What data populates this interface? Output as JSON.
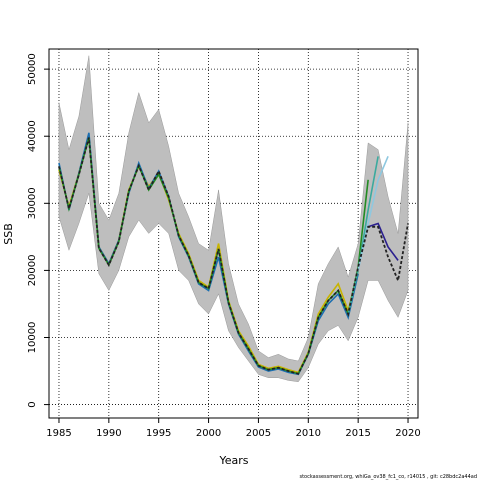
{
  "chart_data": {
    "type": "line",
    "xlabel": "Years",
    "ylabel": "SSB",
    "footer": "stockassessment.org, whiGa_ov38_fc1_co, r14015 , git: c28bdc2a44ad",
    "xlim": [
      1984,
      2021
    ],
    "ylim": [
      -2000,
      53000
    ],
    "xticks": [
      1985,
      1990,
      1995,
      2000,
      2005,
      2010,
      2015,
      2020
    ],
    "yticks": [
      0,
      10000,
      20000,
      30000,
      40000,
      50000
    ],
    "grid": true,
    "grid_style": "dotted",
    "confidence_band": {
      "x": [
        1985,
        1986,
        1987,
        1988,
        1989,
        1990,
        1991,
        1992,
        1993,
        1994,
        1995,
        1996,
        1997,
        1998,
        1999,
        2000,
        2001,
        2002,
        2003,
        2004,
        2005,
        2006,
        2007,
        2008,
        2009,
        2010,
        2011,
        2012,
        2013,
        2014,
        2015,
        2016,
        2017,
        2018,
        2019,
        2020
      ],
      "upper": [
        45000,
        38000,
        43000,
        52000,
        30000,
        27500,
        31500,
        40500,
        46500,
        42000,
        44000,
        38500,
        31500,
        28000,
        24000,
        23000,
        32000,
        21000,
        15000,
        12000,
        8000,
        7000,
        7500,
        6800,
        6500,
        10000,
        18000,
        21000,
        23500,
        19000,
        24000,
        39000,
        38000,
        31000,
        25500,
        42000
      ],
      "lower": [
        28000,
        23000,
        27000,
        31500,
        19500,
        17000,
        20000,
        25000,
        27500,
        25500,
        27000,
        25500,
        20000,
        18500,
        15000,
        13500,
        16500,
        11000,
        8500,
        6500,
        4500,
        4000,
        4000,
        3600,
        3400,
        5500,
        9000,
        11000,
        11800,
        9500,
        13000,
        18500,
        18500,
        15500,
        13000,
        17000
      ],
      "color": "#bebebe"
    },
    "series": [
      {
        "color": "#c8b400",
        "x": [
          1985,
          1986,
          1987,
          1988,
          1989,
          1990,
          1991,
          1992,
          1993,
          1994,
          1995,
          1996,
          1997,
          1998,
          1999,
          2000,
          2001,
          2002,
          2003,
          2004,
          2005,
          2006,
          2007,
          2008,
          2009,
          2010,
          2011,
          2012,
          2013,
          2014,
          2015
        ],
        "y": [
          35000,
          29500,
          34500,
          40000,
          23500,
          21000,
          24500,
          32000,
          35500,
          32500,
          34500,
          30500,
          25500,
          22500,
          18500,
          17500,
          24000,
          15500,
          11000,
          8700,
          6000,
          5400,
          5700,
          5200,
          4800,
          7800,
          13500,
          16000,
          18000,
          14000,
          20000
        ]
      },
      {
        "color": "#1c6fb0",
        "x": [
          1985,
          1986,
          1987,
          1988,
          1989,
          1990,
          1991,
          1992,
          1993,
          1994,
          1995,
          1996,
          1997,
          1998,
          1999,
          2000,
          2001,
          2002,
          2003,
          2004,
          2005,
          2006,
          2007,
          2008,
          2009,
          2010,
          2011,
          2012,
          2013,
          2014,
          2015
        ],
        "y": [
          36000,
          29000,
          34500,
          40500,
          23500,
          21000,
          24500,
          31500,
          36000,
          32200,
          34800,
          31000,
          25000,
          22000,
          18000,
          17000,
          22000,
          15000,
          10500,
          8000,
          5600,
          5000,
          5300,
          4800,
          4500,
          7500,
          12500,
          15000,
          16500,
          13000,
          19500
        ]
      },
      {
        "color": "#228b22",
        "x": [
          1985,
          1986,
          1987,
          1988,
          1989,
          1990,
          1991,
          1992,
          1993,
          1994,
          1995,
          1996,
          1997,
          1998,
          1999,
          2000,
          2001,
          2002,
          2003,
          2004,
          2005,
          2006,
          2007,
          2008,
          2009,
          2010,
          2011,
          2012,
          2013,
          2014,
          2015,
          2016
        ],
        "y": [
          35500,
          29200,
          34300,
          39800,
          23300,
          20800,
          24300,
          31800,
          35600,
          32000,
          34300,
          30800,
          25200,
          22200,
          18200,
          17300,
          23200,
          15200,
          10700,
          8300,
          5800,
          5200,
          5500,
          5000,
          4600,
          7600,
          13000,
          15500,
          17000,
          13500,
          20500,
          33500
        ]
      },
      {
        "color": "#3aaa9e",
        "x": [
          2014,
          2015,
          2016,
          2017
        ],
        "y": [
          13500,
          20000,
          29000,
          37000
        ]
      },
      {
        "color": "#8ec8e0",
        "x": [
          2015,
          2016,
          2017,
          2018
        ],
        "y": [
          20000,
          27000,
          33500,
          37000
        ]
      },
      {
        "color": "#2b1f8f",
        "x": [
          2016,
          2017,
          2018,
          2019
        ],
        "y": [
          26500,
          27000,
          23500,
          21500
        ]
      },
      {
        "color": "#222222",
        "x": [
          1985,
          1986,
          1987,
          1988,
          1989,
          1990,
          1991,
          1992,
          1993,
          1994,
          1995,
          1996,
          1997,
          1998,
          1999,
          2000,
          2001,
          2002,
          2003,
          2004,
          2005,
          2006,
          2007,
          2008,
          2009,
          2010,
          2011,
          2012,
          2013,
          2014,
          2015,
          2016,
          2017,
          2018,
          2019,
          2020
        ],
        "y": [
          35500,
          29200,
          34300,
          39800,
          23300,
          20800,
          24300,
          31800,
          35600,
          32000,
          34800,
          31000,
          25200,
          22200,
          18200,
          17300,
          23200,
          15200,
          10700,
          8300,
          5800,
          5200,
          5500,
          5000,
          4600,
          7600,
          13000,
          15500,
          17000,
          13500,
          20500,
          26500,
          26500,
          22000,
          18500,
          27000
        ]
      }
    ]
  }
}
